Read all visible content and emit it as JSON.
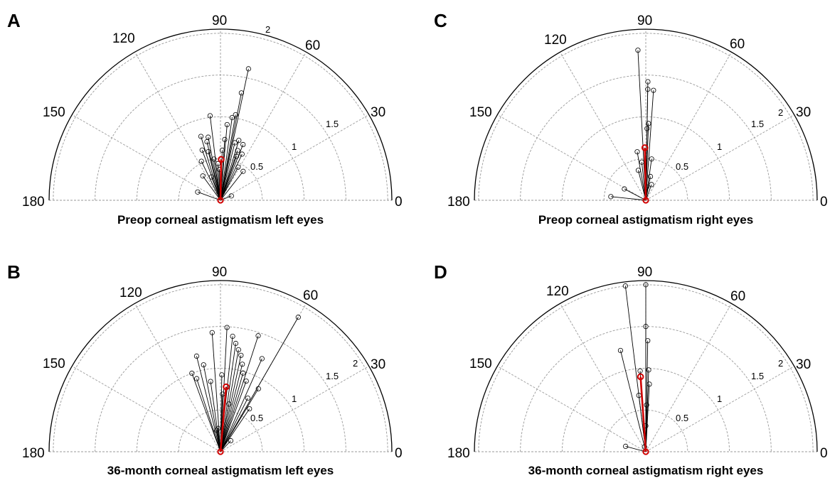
{
  "chart_data": [
    {
      "type": "polar-scatter",
      "panel": "A",
      "title": "Preop corneal astigmatism left eyes",
      "angle_ticks": [
        "0",
        "30",
        "60",
        "90",
        "120",
        "150",
        "180"
      ],
      "radial_ticks": [
        "0.5",
        "1",
        "1.5",
        "2"
      ],
      "rlim": [
        0,
        2.05
      ],
      "theta_range": [
        0,
        180
      ],
      "series": [
        {
          "name": "",
          "color": "#000000",
          "points": [
            {
              "axis": 78,
              "magnitude": 1.61
            },
            {
              "axis": 79,
              "magnitude": 1.31
            },
            {
              "axis": 97,
              "magnitude": 1.02
            },
            {
              "axis": 101,
              "magnitude": 0.77
            },
            {
              "axis": 107,
              "magnitude": 0.8
            },
            {
              "axis": 110,
              "magnitude": 0.64
            },
            {
              "axis": 104,
              "magnitude": 0.6
            },
            {
              "axis": 99,
              "magnitude": 0.5
            },
            {
              "axis": 94,
              "magnitude": 0.44
            },
            {
              "axis": 88,
              "magnitude": 0.6
            },
            {
              "axis": 86,
              "magnitude": 0.73
            },
            {
              "axis": 85,
              "magnitude": 0.91
            },
            {
              "axis": 82,
              "magnitude": 1.0
            },
            {
              "axis": 80,
              "magnitude": 1.04
            },
            {
              "axis": 76,
              "magnitude": 0.71
            },
            {
              "axis": 73,
              "magnitude": 0.75
            },
            {
              "axis": 70,
              "magnitude": 0.56
            },
            {
              "axis": 62,
              "magnitude": 0.45
            },
            {
              "axis": 52,
              "magnitude": 0.44
            },
            {
              "axis": 22,
              "magnitude": 0.14
            },
            {
              "axis": 160,
              "magnitude": 0.29
            },
            {
              "axis": 126,
              "magnitude": 0.36
            },
            {
              "axis": 116,
              "magnitude": 0.52
            },
            {
              "axis": 111,
              "magnitude": 0.3
            },
            {
              "axis": 103,
              "magnitude": 0.72
            },
            {
              "axis": 92,
              "magnitude": 0.37
            },
            {
              "axis": 71,
              "magnitude": 0.63
            },
            {
              "axis": 68,
              "magnitude": 0.72
            },
            {
              "axis": 65,
              "magnitude": 0.61
            }
          ]
        },
        {
          "name": "",
          "color": "#d00000",
          "points": [
            {
              "axis": 89,
              "magnitude": 0.49
            }
          ]
        }
      ]
    },
    {
      "type": "polar-scatter",
      "panel": "B",
      "title": "36-month corneal astigmatism left eyes",
      "angle_ticks": [
        "0",
        "30",
        "60",
        "90",
        "120",
        "150",
        "180"
      ],
      "radial_ticks": [
        "0.5",
        "1",
        "1.5",
        "2"
      ],
      "rlim": [
        0,
        2.05
      ],
      "theta_range": [
        0,
        180
      ],
      "series": [
        {
          "name": "",
          "color": "#000000",
          "points": [
            {
              "axis": 60,
              "magnitude": 1.86
            },
            {
              "axis": 72,
              "magnitude": 1.46
            },
            {
              "axis": 87,
              "magnitude": 1.49
            },
            {
              "axis": 94,
              "magnitude": 1.43
            },
            {
              "axis": 104,
              "magnitude": 1.18
            },
            {
              "axis": 110,
              "magnitude": 1.0
            },
            {
              "axis": 108,
              "magnitude": 0.92
            },
            {
              "axis": 101,
              "magnitude": 1.06
            },
            {
              "axis": 84,
              "magnitude": 1.39
            },
            {
              "axis": 82,
              "magnitude": 1.31
            },
            {
              "axis": 80,
              "magnitude": 1.24
            },
            {
              "axis": 78,
              "magnitude": 1.18
            },
            {
              "axis": 76,
              "magnitude": 1.08
            },
            {
              "axis": 74,
              "magnitude": 0.98
            },
            {
              "axis": 70,
              "magnitude": 0.9
            },
            {
              "axis": 66,
              "magnitude": 1.22
            },
            {
              "axis": 59,
              "magnitude": 0.88
            },
            {
              "axis": 56,
              "magnitude": 0.62
            },
            {
              "axis": 89,
              "magnitude": 0.92
            },
            {
              "axis": 98,
              "magnitude": 0.85
            },
            {
              "axis": 88,
              "magnitude": 0.69
            },
            {
              "axis": 80,
              "magnitude": 0.58
            },
            {
              "axis": 96,
              "magnitude": 0.28
            },
            {
              "axis": 100,
              "magnitude": 0.26
            },
            {
              "axis": 47,
              "magnitude": 0.18
            },
            {
              "axis": 63,
              "magnitude": 0.72
            }
          ]
        },
        {
          "name": "",
          "color": "#d00000",
          "points": [
            {
              "axis": 85,
              "magnitude": 0.78
            }
          ]
        }
      ]
    },
    {
      "type": "polar-scatter",
      "panel": "C",
      "title": "Preop corneal astigmatism right eyes",
      "angle_ticks": [
        "0",
        "30",
        "60",
        "90",
        "120",
        "150",
        "180"
      ],
      "radial_ticks": [
        "0.5",
        "1",
        "1.5",
        "2"
      ],
      "rlim": [
        0,
        2.05
      ],
      "theta_range": [
        0,
        180
      ],
      "series": [
        {
          "name": "",
          "color": "#000000",
          "points": [
            {
              "axis": 93,
              "magnitude": 1.8
            },
            {
              "axis": 89,
              "magnitude": 1.42
            },
            {
              "axis": 89,
              "magnitude": 1.33
            },
            {
              "axis": 86,
              "magnitude": 1.32
            },
            {
              "axis": 88,
              "magnitude": 0.92
            },
            {
              "axis": 89,
              "magnitude": 0.86
            },
            {
              "axis": 100,
              "magnitude": 0.59
            },
            {
              "axis": 96,
              "magnitude": 0.46
            },
            {
              "axis": 82,
              "magnitude": 0.5
            },
            {
              "axis": 79,
              "magnitude": 0.29
            },
            {
              "axis": 70,
              "magnitude": 0.2
            },
            {
              "axis": 86,
              "magnitude": 0.16
            },
            {
              "axis": 152,
              "magnitude": 0.29
            },
            {
              "axis": 174,
              "magnitude": 0.42
            },
            {
              "axis": 104,
              "magnitude": 0.37
            }
          ]
        },
        {
          "name": "",
          "color": "#d00000",
          "points": [
            {
              "axis": 91,
              "magnitude": 0.63
            }
          ]
        }
      ]
    },
    {
      "type": "polar-scatter",
      "panel": "D",
      "title": "36-month corneal astigmatism right eyes",
      "angle_ticks": [
        "0",
        "30",
        "60",
        "90",
        "120",
        "150",
        "180"
      ],
      "radial_ticks": [
        "0.5",
        "1",
        "1.5",
        "2"
      ],
      "rlim": [
        0,
        2.05
      ],
      "theta_range": [
        0,
        180
      ],
      "series": [
        {
          "name": "",
          "color": "#000000",
          "points": [
            {
              "axis": 97,
              "magnitude": 2.0
            },
            {
              "axis": 90,
              "magnitude": 2.0
            },
            {
              "axis": 90,
              "magnitude": 1.5
            },
            {
              "axis": 89,
              "magnitude": 1.33
            },
            {
              "axis": 104,
              "magnitude": 1.25
            },
            {
              "axis": 88,
              "magnitude": 0.98
            },
            {
              "axis": 94,
              "magnitude": 0.97
            },
            {
              "axis": 87,
              "magnitude": 0.81
            },
            {
              "axis": 97,
              "magnitude": 0.68
            },
            {
              "axis": 89,
              "magnitude": 0.56
            },
            {
              "axis": 90,
              "magnitude": 0.31
            },
            {
              "axis": 165,
              "magnitude": 0.25
            },
            {
              "axis": 105,
              "magnitude": 0.06
            }
          ]
        },
        {
          "name": "",
          "color": "#d00000",
          "points": [
            {
              "axis": 94,
              "magnitude": 0.9
            }
          ]
        }
      ]
    }
  ]
}
